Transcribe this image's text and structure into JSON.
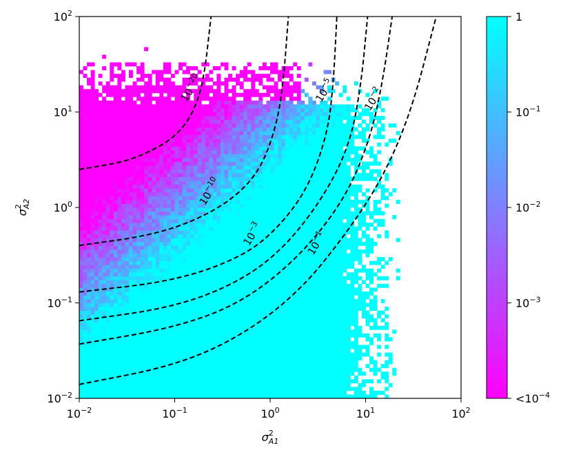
{
  "chart_data": {
    "type": "heatmap",
    "title": "",
    "xlabel": {
      "base": "σ",
      "sup": "2",
      "sub": "A1"
    },
    "ylabel": {
      "base": "σ",
      "sup": "2",
      "sub": "A2"
    },
    "xscale": "log",
    "yscale": "log",
    "xlim": [
      0.01,
      100
    ],
    "ylim": [
      0.01,
      100
    ],
    "x_ticks": [
      {
        "value": 0.01,
        "base": "10",
        "exp": "−2"
      },
      {
        "value": 0.1,
        "base": "10",
        "exp": "−1"
      },
      {
        "value": 1,
        "base": "10",
        "exp": "0"
      },
      {
        "value": 10,
        "base": "10",
        "exp": "1"
      },
      {
        "value": 100,
        "base": "10",
        "exp": "2"
      }
    ],
    "y_ticks": [
      {
        "value": 0.01,
        "base": "10",
        "exp": "−2"
      },
      {
        "value": 0.1,
        "base": "10",
        "exp": "−1"
      },
      {
        "value": 1,
        "base": "10",
        "exp": "0"
      },
      {
        "value": 10,
        "base": "10",
        "exp": "1"
      },
      {
        "value": 100,
        "base": "10",
        "exp": "2"
      }
    ],
    "grid": false,
    "colorbar": {
      "scale": "log",
      "range": [
        0.0001,
        1
      ],
      "colors": [
        "#ff00ff",
        "#00ffff"
      ],
      "ticks": [
        {
          "value": 1,
          "base": "1",
          "exp": ""
        },
        {
          "value": 0.1,
          "base": "10",
          "exp": "−1"
        },
        {
          "value": 0.01,
          "base": "10",
          "exp": "−2"
        },
        {
          "value": 0.001,
          "base": "10",
          "exp": "−3"
        },
        {
          "value": 0.0001,
          "base": "<10",
          "exp": "−4"
        }
      ]
    },
    "contours": [
      {
        "level": 1e-20,
        "label_base": "10",
        "label_exp": "−20",
        "points": [
          [
            0.01,
            2.5
          ],
          [
            0.03,
            3.0
          ],
          [
            0.06,
            4.0
          ],
          [
            0.1,
            5.5
          ],
          [
            0.15,
            9.0
          ],
          [
            0.2,
            20
          ],
          [
            0.24,
            100
          ]
        ],
        "label_at": [
          0.16,
          17
        ]
      },
      {
        "level": 1e-10,
        "label_base": "10",
        "label_exp": "−10",
        "points": [
          [
            0.01,
            0.4
          ],
          [
            0.05,
            0.5
          ],
          [
            0.15,
            0.7
          ],
          [
            0.4,
            1.2
          ],
          [
            0.8,
            2.5
          ],
          [
            1.2,
            8
          ],
          [
            1.4,
            25
          ],
          [
            1.55,
            100
          ]
        ],
        "label_at": [
          0.25,
          1.4
        ]
      },
      {
        "level": 1e-05,
        "label_base": "10",
        "label_exp": "−5",
        "points": [
          [
            0.01,
            0.13
          ],
          [
            0.1,
            0.17
          ],
          [
            0.5,
            0.3
          ],
          [
            1.2,
            0.6
          ],
          [
            2.5,
            1.6
          ],
          [
            4.0,
            6
          ],
          [
            4.6,
            20
          ],
          [
            5.0,
            100
          ]
        ],
        "label_at": [
          4.0,
          16
        ]
      },
      {
        "level": 0.001,
        "label_base": "10",
        "label_exp": "−3",
        "points": [
          [
            0.01,
            0.065
          ],
          [
            0.1,
            0.09
          ],
          [
            0.5,
            0.17
          ],
          [
            1.5,
            0.4
          ],
          [
            4,
            1.5
          ],
          [
            7,
            5
          ],
          [
            9,
            20
          ],
          [
            10.5,
            100
          ]
        ],
        "label_at": [
          0.7,
          0.5
        ]
      },
      {
        "level": 0.01,
        "label_base": "10",
        "label_exp": "−2",
        "points": [
          [
            0.01,
            0.037
          ],
          [
            0.1,
            0.055
          ],
          [
            0.5,
            0.1
          ],
          [
            2,
            0.3
          ],
          [
            6,
            1.2
          ],
          [
            11,
            5
          ],
          [
            15,
            20
          ],
          [
            19,
            100
          ]
        ],
        "label_at": [
          13,
          13
        ]
      },
      {
        "level": 0.1,
        "label_base": "10",
        "label_exp": "−1",
        "points": [
          [
            0.01,
            0.014
          ],
          [
            0.1,
            0.022
          ],
          [
            0.5,
            0.045
          ],
          [
            2,
            0.13
          ],
          [
            6,
            0.5
          ],
          [
            15,
            2
          ],
          [
            30,
            10
          ],
          [
            55,
            100
          ]
        ],
        "label_at": [
          3.3,
          0.4
        ]
      }
    ]
  }
}
